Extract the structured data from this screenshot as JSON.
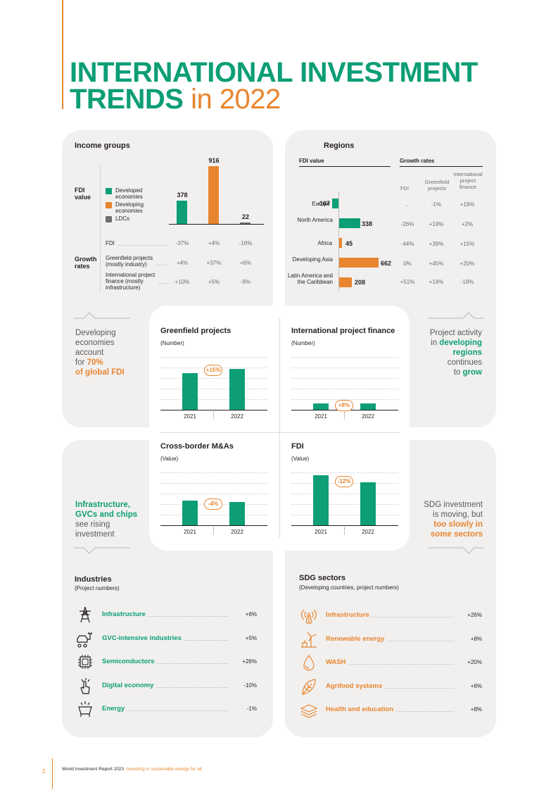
{
  "title": {
    "line1": "INTERNATIONAL INVESTMENT",
    "line2_bold": "TRENDS",
    "line2_light": " in 2022"
  },
  "income": {
    "heading": "Income groups",
    "fdi_label": "FDI value",
    "legend": [
      "Developed economies",
      "Developing economies",
      "LDCs"
    ],
    "values": [
      "378",
      "916",
      "22"
    ],
    "growth_label": "Growth rates",
    "rows": [
      {
        "label": "FDI",
        "vals": [
          "-37%",
          "+4%",
          "-16%"
        ]
      },
      {
        "label": "Greenfield projects (mostly industry)",
        "vals": [
          "+4%",
          "+37%",
          "+6%"
        ]
      },
      {
        "label": "International project finance (mostly infrastructure)",
        "vals": [
          "+10%",
          "+5%",
          "-9%"
        ]
      }
    ]
  },
  "regions": {
    "heading": "Regions",
    "fdi_value": "FDI value",
    "growth_rates": "Growth rates",
    "cols": [
      "FDI",
      "Greenfield projects",
      "International project finance"
    ],
    "rows": [
      {
        "name": "Europe",
        "value": "-107",
        "g": [
          "..",
          "-1%",
          "+19%"
        ]
      },
      {
        "name": "North America",
        "value": "338",
        "g": [
          "-26%",
          "+19%",
          "+2%"
        ]
      },
      {
        "name": "Africa",
        "value": "45",
        "g": [
          "-44%",
          "+39%",
          "+15%"
        ]
      },
      {
        "name": "Developing Asia",
        "value": "662",
        "g": [
          "0%",
          "+45%",
          "+20%"
        ]
      },
      {
        "name": "Latin America and the Caribbean",
        "value": "208",
        "g": [
          "+51%",
          "+14%",
          "-18%"
        ]
      }
    ]
  },
  "callouts": {
    "left_top": [
      "Developing",
      "economies",
      "account",
      "for ",
      "70%",
      "of global FDI"
    ],
    "right_top": [
      "Project activity",
      "in ",
      "developing",
      "regions",
      "continues",
      "to ",
      "grow"
    ],
    "left_bot": [
      "Infrastructure,",
      "GVCs and chips",
      "see rising",
      "investment"
    ],
    "right_bot": [
      "SDG investment",
      "is moving, but",
      "too slowly in",
      "some sectors"
    ]
  },
  "mini": [
    {
      "title": "Greenfield projects",
      "sub": "(Number)",
      "x": [
        "2021",
        "2022"
      ],
      "change": "+15%"
    },
    {
      "title": "International project finance",
      "sub": "(Number)",
      "x": [
        "2021",
        "2022"
      ],
      "change": "+8%"
    },
    {
      "title": "Cross-border M&As",
      "sub": "(Value)",
      "x": [
        "2021",
        "2022"
      ],
      "change": "-4%"
    },
    {
      "title": "FDI",
      "sub": "(Value)",
      "x": [
        "2021",
        "2022"
      ],
      "change": "-12%"
    }
  ],
  "industries": {
    "heading": "Industries",
    "sub": "(Project numbers)",
    "rows": [
      {
        "label": "Infrastructure",
        "val": "+6%",
        "icon": "power-tower-icon"
      },
      {
        "label": "GVC-intensive industries",
        "val": "+5%",
        "icon": "car-plug-icon"
      },
      {
        "label": "Semiconductors",
        "val": "+26%",
        "icon": "chip-icon"
      },
      {
        "label": "Digital economy",
        "val": "-10%",
        "icon": "touch-hand-icon"
      },
      {
        "label": "Energy",
        "val": "-1%",
        "icon": "energy-icon"
      }
    ]
  },
  "sdg": {
    "heading": "SDG sectors",
    "sub": "(Developing countries, project numbers)",
    "rows": [
      {
        "label": "Infrastructure",
        "val": "+26%",
        "icon": "antenna-icon"
      },
      {
        "label": "Renewable energy",
        "val": "+8%",
        "icon": "wind-turbine-icon"
      },
      {
        "label": "WASH",
        "val": "+20%",
        "icon": "water-drop-icon"
      },
      {
        "label": "Agrifood systems",
        "val": "+6%",
        "icon": "leaf-icon"
      },
      {
        "label": "Health and education",
        "val": "+8%",
        "icon": "layers-icon"
      }
    ]
  },
  "footer": {
    "page": "2",
    "report": "World Investment Report 2023",
    "subtitle": "Investing in sustainable energy for all"
  }
}
